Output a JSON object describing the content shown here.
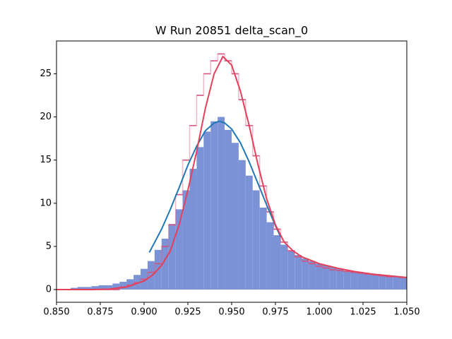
{
  "chart_data": {
    "type": "histogram",
    "title": "W Run 20851 delta_scan_0",
    "bins": [
      0.85,
      0.854,
      0.858,
      0.862,
      0.866,
      0.87,
      0.874,
      0.878,
      0.882,
      0.886,
      0.89,
      0.894,
      0.898,
      0.902,
      0.906,
      0.91,
      0.914,
      0.918,
      0.922,
      0.926,
      0.93,
      0.934,
      0.938,
      0.942,
      0.946,
      0.95,
      0.954,
      0.958,
      0.962,
      0.966,
      0.97,
      0.974,
      0.978,
      0.982,
      0.986,
      0.99,
      0.994,
      0.998,
      1.002,
      1.006,
      1.01,
      1.014,
      1.018,
      1.022,
      1.026,
      1.03,
      1.034,
      1.038,
      1.042,
      1.046,
      1.05
    ],
    "series": [
      {
        "style": "filled",
        "color": "#7b93d6",
        "values": [
          0,
          0,
          0.2,
          0.3,
          0.3,
          0.4,
          0.5,
          0.5,
          0.7,
          0.9,
          1.2,
          1.7,
          2.4,
          3.3,
          4.6,
          5.9,
          7.6,
          9.3,
          11.5,
          14,
          16.5,
          18.3,
          19.5,
          20,
          18.5,
          17,
          15,
          13.2,
          11.5,
          9.5,
          7.8,
          6.3,
          5.2,
          4.5,
          4,
          3.6,
          3.3,
          3,
          2.8,
          2.6,
          2.4,
          2.2,
          2.1,
          2,
          1.8,
          1.7,
          1.6,
          1.6,
          1.5,
          1.4
        ]
      },
      {
        "style": "step",
        "color": "#d9507a",
        "values": [
          0,
          0,
          0,
          0,
          0,
          0,
          0,
          0,
          0,
          0.3,
          0.5,
          0.8,
          1.2,
          2,
          3,
          5,
          7.5,
          11,
          15,
          19,
          22.5,
          25,
          26.5,
          27.3,
          26.5,
          25,
          22,
          19,
          15.5,
          12,
          9,
          7,
          5.5,
          4.5,
          3.8,
          3.3,
          3,
          2.7,
          2.5,
          2.3,
          2.2,
          2.1,
          2,
          1.9,
          1.8,
          1.7,
          1.6,
          1.5,
          1.5,
          1.4
        ]
      }
    ],
    "curves": [
      {
        "color": "#1f77b4",
        "x": [
          0.903,
          0.91,
          0.915,
          0.92,
          0.925,
          0.93,
          0.935,
          0.94,
          0.943,
          0.946,
          0.95,
          0.955,
          0.96,
          0.965,
          0.97,
          0.975,
          0.978
        ],
        "values": [
          4.3,
          7.0,
          9.3,
          11.8,
          14.4,
          16.6,
          18.4,
          19.3,
          19.5,
          19.3,
          18.6,
          17.0,
          14.8,
          12.3,
          9.8,
          7.4,
          6.1
        ]
      },
      {
        "color": "#e4405a",
        "x": [
          0.85,
          0.87,
          0.88,
          0.89,
          0.9,
          0.905,
          0.91,
          0.915,
          0.92,
          0.925,
          0.93,
          0.935,
          0.94,
          0.945,
          0.95,
          0.955,
          0.96,
          0.965,
          0.97,
          0.975,
          0.98,
          0.985,
          0.99,
          1.0,
          1.01,
          1.02,
          1.03,
          1.04,
          1.05
        ],
        "values": [
          0,
          0,
          0.05,
          0.3,
          1,
          1.7,
          2.8,
          4.5,
          7.5,
          11.5,
          16,
          21,
          25,
          27,
          26,
          23,
          19,
          14.5,
          10.5,
          7.5,
          5.5,
          4.5,
          3.8,
          3,
          2.5,
          2.1,
          1.8,
          1.6,
          1.4
        ]
      }
    ],
    "xlim": [
      0.85,
      1.05
    ],
    "ylim": [
      -1.47,
      28.8
    ],
    "xticks": [
      {
        "value": 0.85,
        "label": "0.850"
      },
      {
        "value": 0.875,
        "label": "0.875"
      },
      {
        "value": 0.9,
        "label": "0.900"
      },
      {
        "value": 0.925,
        "label": "0.925"
      },
      {
        "value": 0.95,
        "label": "0.950"
      },
      {
        "value": 0.975,
        "label": "0.975"
      },
      {
        "value": 1.0,
        "label": "1.000"
      },
      {
        "value": 1.025,
        "label": "1.025"
      },
      {
        "value": 1.05,
        "label": "1.050"
      }
    ],
    "yticks": [
      0,
      5,
      10,
      15,
      20,
      25
    ]
  }
}
